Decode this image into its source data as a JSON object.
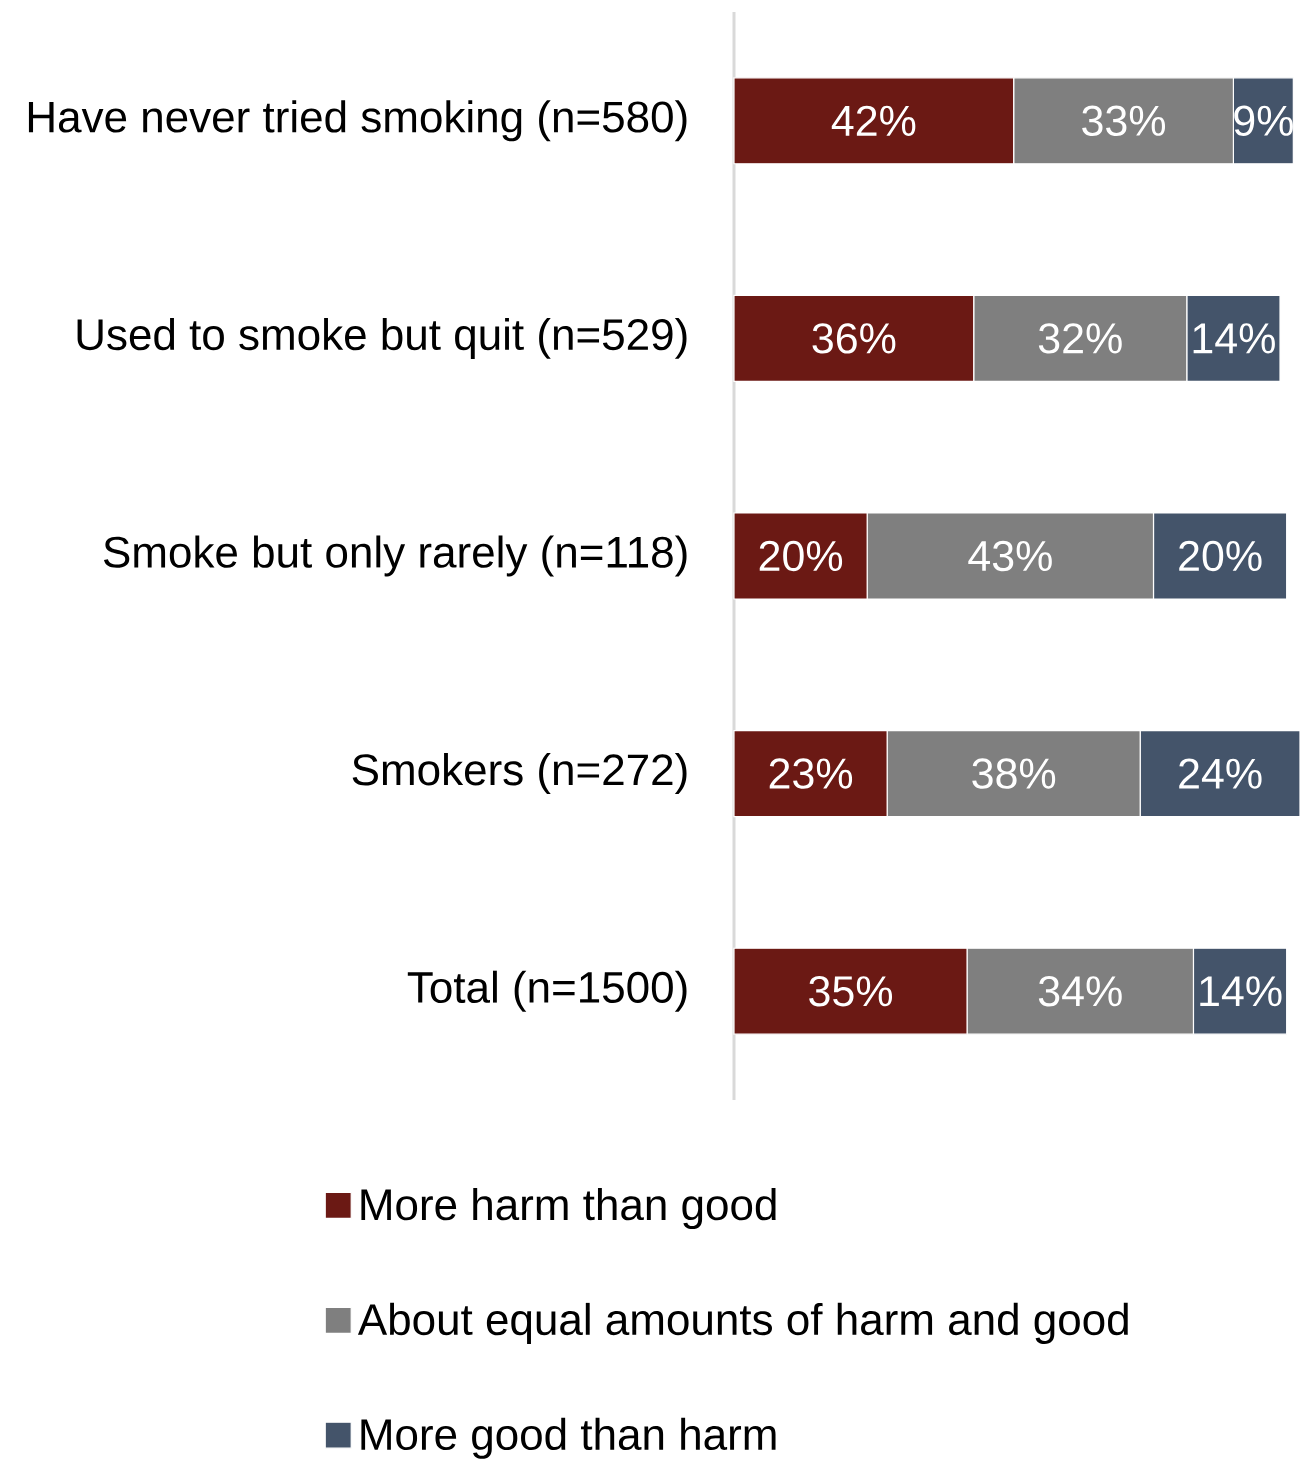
{
  "chart_data": {
    "type": "bar",
    "orientation": "horizontal",
    "stacked": true,
    "categories": [
      "Have never tried smoking (n=580)",
      "Used to smoke but quit (n=529)",
      "Smoke but only rarely (n=118)",
      "Smokers (n=272)",
      "Total (n=1500)"
    ],
    "series": [
      {
        "name": "More harm than good",
        "color": "#6B1914",
        "values": [
          42,
          36,
          20,
          23,
          35
        ],
        "value_labels": [
          "42%",
          "36%",
          "20%",
          "23%",
          "35%"
        ]
      },
      {
        "name": "About equal amounts of harm and good",
        "color": "#7F7F7F",
        "values": [
          33,
          32,
          43,
          38,
          34
        ],
        "value_labels": [
          "33%",
          "32%",
          "43%",
          "38%",
          "34%"
        ]
      },
      {
        "name": "More good than harm",
        "color": "#44546A",
        "values": [
          9,
          14,
          20,
          24,
          14
        ],
        "value_labels": [
          "9%",
          "14%",
          "20%",
          "24%",
          "14%"
        ]
      }
    ],
    "legend": "bottom"
  }
}
